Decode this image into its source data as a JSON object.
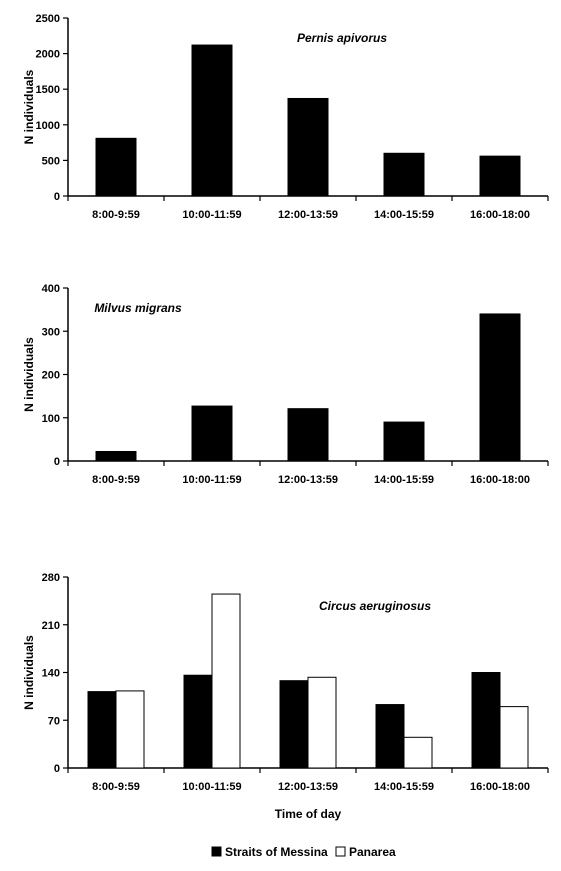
{
  "chart_data": [
    {
      "type": "bar",
      "annotation": "Pernis apivorus",
      "ylabel": "N individuals",
      "xlabel": "",
      "categories": [
        "8:00-9:59",
        "10:00-11:59",
        "12:00-13:59",
        "14:00-15:59",
        "16:00-18:00"
      ],
      "ylim": [
        0,
        2500
      ],
      "yticks": [
        0,
        500,
        1000,
        1500,
        2000,
        2500
      ],
      "series": [
        {
          "name": "Straits of Messina",
          "color": "#000000",
          "values": [
            810,
            2120,
            1370,
            600,
            560
          ]
        }
      ]
    },
    {
      "type": "bar",
      "annotation": "Milvus migrans",
      "ylabel": "N individuals",
      "xlabel": "",
      "categories": [
        "8:00-9:59",
        "10:00-11:59",
        "12:00-13:59",
        "14:00-15:59",
        "16:00-18:00"
      ],
      "ylim": [
        0,
        400
      ],
      "yticks": [
        0,
        100,
        200,
        300,
        400
      ],
      "series": [
        {
          "name": "Straits of Messina",
          "color": "#000000",
          "values": [
            22,
            127,
            121,
            90,
            340
          ]
        }
      ]
    },
    {
      "type": "bar",
      "annotation": "Circus aeruginosus",
      "ylabel": "N individuals",
      "xlabel": "Time of day",
      "categories": [
        "8:00-9:59",
        "10:00-11:59",
        "12:00-13:59",
        "14:00-15:59",
        "16:00-18:00"
      ],
      "ylim": [
        0,
        280
      ],
      "yticks": [
        0,
        70,
        140,
        210,
        280
      ],
      "series": [
        {
          "name": "Straits of Messina",
          "color": "#000000",
          "values": [
            112,
            136,
            128,
            93,
            140
          ]
        },
        {
          "name": "Panarea",
          "color": "#ffffff",
          "values": [
            113,
            255,
            133,
            45,
            90
          ]
        }
      ]
    }
  ],
  "legend": {
    "items": [
      {
        "label": "Straits of Messina",
        "color": "#000000"
      },
      {
        "label": "Panarea",
        "color": "#ffffff"
      }
    ]
  }
}
